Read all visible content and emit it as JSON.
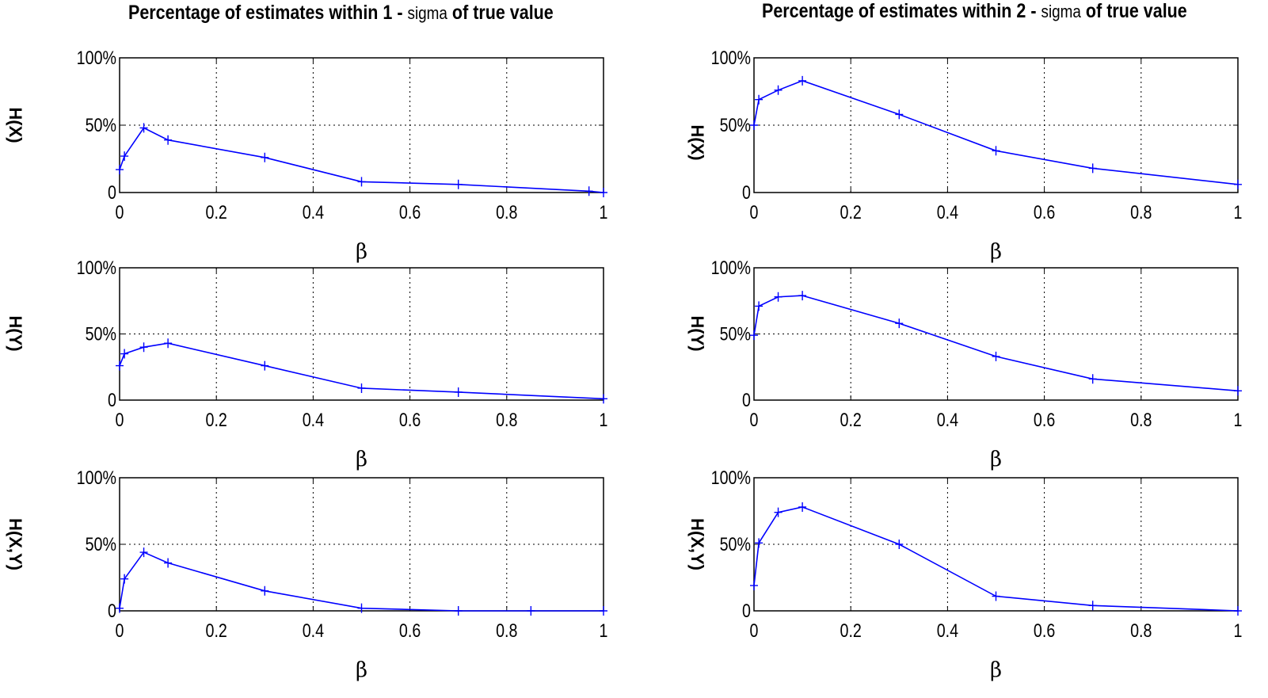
{
  "titles": {
    "left_prefix": "Percentage of estimates within 1 -",
    "left_sigma": "sigma",
    "left_suffix": "of true value",
    "right_prefix": "Percentage of estimates within 2 -",
    "right_sigma": "sigma",
    "right_suffix": "of true value"
  },
  "chart_data": [
    {
      "type": "line",
      "title": "Percentage of estimates within 1 - sigma of true value",
      "ylabel": "H(X)",
      "xlabel": "β",
      "xlim": [
        0,
        1
      ],
      "ylim": [
        0,
        100
      ],
      "xticks": [
        "0",
        "0.2",
        "0.4",
        "0.6",
        "0.8",
        "1"
      ],
      "yticks": [
        "0",
        "50%",
        "100%"
      ],
      "grid": true,
      "color": "#0000ff",
      "x": [
        0,
        0.01,
        0.05,
        0.1,
        0.3,
        0.5,
        0.7,
        0.97,
        1.0
      ],
      "y": [
        17,
        27,
        48,
        39,
        26,
        8,
        6,
        1,
        0
      ]
    },
    {
      "type": "line",
      "title": "Percentage of estimates within 1 - sigma of true value",
      "ylabel": "H(Y)",
      "xlabel": "β",
      "xlim": [
        0,
        1
      ],
      "ylim": [
        0,
        100
      ],
      "xticks": [
        "0",
        "0.2",
        "0.4",
        "0.6",
        "0.8",
        "1"
      ],
      "yticks": [
        "0",
        "50%",
        "100%"
      ],
      "grid": true,
      "color": "#0000ff",
      "x": [
        0,
        0.01,
        0.05,
        0.1,
        0.3,
        0.5,
        0.7,
        1.0
      ],
      "y": [
        26,
        35,
        40,
        43,
        26,
        9,
        6,
        1
      ]
    },
    {
      "type": "line",
      "title": "Percentage of estimates within 1 - sigma of true value",
      "ylabel": "H(X,Y)",
      "xlabel": "β",
      "xlim": [
        0,
        1
      ],
      "ylim": [
        0,
        100
      ],
      "xticks": [
        "0",
        "0.2",
        "0.4",
        "0.6",
        "0.8",
        "1"
      ],
      "yticks": [
        "0",
        "50%",
        "100%"
      ],
      "grid": true,
      "color": "#0000ff",
      "x": [
        0,
        0.01,
        0.05,
        0.1,
        0.3,
        0.5,
        0.7,
        0.85,
        1.0
      ],
      "y": [
        2,
        24,
        44,
        36,
        15,
        2,
        0,
        0,
        0
      ]
    },
    {
      "type": "line",
      "title": "Percentage of estimates within 2 - sigma of true value",
      "ylabel": "H(X)",
      "xlabel": "β",
      "xlim": [
        0,
        1
      ],
      "ylim": [
        0,
        100
      ],
      "xticks": [
        "0",
        "0.2",
        "0.4",
        "0.6",
        "0.8",
        "1"
      ],
      "yticks": [
        "0",
        "50%",
        "100%"
      ],
      "grid": true,
      "color": "#0000ff",
      "x": [
        0,
        0.01,
        0.05,
        0.1,
        0.3,
        0.5,
        0.7,
        1.0
      ],
      "y": [
        50,
        69,
        76,
        83,
        58,
        31,
        18,
        6
      ]
    },
    {
      "type": "line",
      "title": "Percentage of estimates within 2 - sigma of true value",
      "ylabel": "H(Y)",
      "xlabel": "β",
      "xlim": [
        0,
        1
      ],
      "ylim": [
        0,
        100
      ],
      "xticks": [
        "0",
        "0.2",
        "0.4",
        "0.6",
        "0.8",
        "1"
      ],
      "yticks": [
        "0",
        "50%",
        "100%"
      ],
      "grid": true,
      "color": "#0000ff",
      "x": [
        0,
        0.01,
        0.05,
        0.1,
        0.3,
        0.5,
        0.7,
        1.0
      ],
      "y": [
        49,
        71,
        78,
        79,
        58,
        33,
        16,
        7
      ]
    },
    {
      "type": "line",
      "title": "Percentage of estimates within 2 - sigma of true value",
      "ylabel": "H(X,Y)",
      "xlabel": "β",
      "xlim": [
        0,
        1
      ],
      "ylim": [
        0,
        100
      ],
      "xticks": [
        "0",
        "0.2",
        "0.4",
        "0.6",
        "0.8",
        "1"
      ],
      "yticks": [
        "0",
        "50%",
        "100%"
      ],
      "grid": true,
      "color": "#0000ff",
      "x": [
        0,
        0.01,
        0.05,
        0.1,
        0.3,
        0.5,
        0.7,
        1.0
      ],
      "y": [
        19,
        51,
        74,
        78,
        50,
        11,
        4,
        0
      ]
    }
  ]
}
